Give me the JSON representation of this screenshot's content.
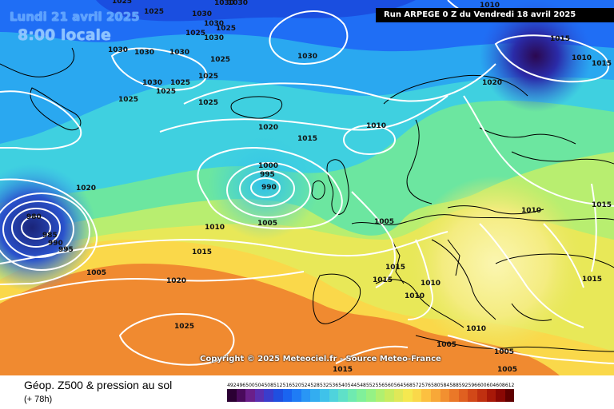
{
  "header": {
    "date_text": "Lundi 21 avril 2025",
    "time_text": "8:00 locale",
    "run_text": "Run ARPEGE 0 Z du Vendredi 18 avril 2025"
  },
  "copyright": "Copyright © 2025 Meteociel.fr - Source Meteo-France",
  "footer": {
    "title": "Géop. Z500 & pression au sol",
    "subtitle": "(+ 78h)"
  },
  "legend": {
    "labels": [
      "492",
      "496",
      "500",
      "504",
      "508",
      "512",
      "516",
      "520",
      "524",
      "528",
      "532",
      "536",
      "540",
      "544",
      "548",
      "552",
      "556",
      "560",
      "564",
      "568",
      "572",
      "576",
      "580",
      "584",
      "588",
      "592",
      "596",
      "600",
      "604",
      "608",
      "612"
    ],
    "colors": [
      "#2b0033",
      "#4a0a5c",
      "#6a1f8a",
      "#5a2fb0",
      "#3a3dcc",
      "#1f4fe0",
      "#1a64f0",
      "#1f7cf5",
      "#2996f5",
      "#33adf0",
      "#3fc2ea",
      "#4fd3dc",
      "#5fe0c8",
      "#6feab0",
      "#80f09a",
      "#95f285",
      "#b0f070",
      "#c8ec60",
      "#e0e858",
      "#f5e850",
      "#fad84a",
      "#fcc040",
      "#f8a838",
      "#f29030",
      "#ea7828",
      "#e06020",
      "#d24818",
      "#c03010",
      "#a81808",
      "#8a0804",
      "#600000"
    ]
  },
  "pressure_labels": [
    "1025",
    "1025",
    "1030",
    "1030",
    "1030",
    "1030",
    "1025",
    "1030",
    "1025",
    "1030",
    "1030",
    "1030",
    "1030",
    "1025",
    "1030",
    "1025",
    "1025",
    "1025",
    "1025",
    "1025",
    "1020",
    "1015",
    "1010",
    "1000",
    "995",
    "990",
    "980",
    "985",
    "990",
    "995",
    "1005",
    "1010",
    "1015",
    "1005",
    "1020",
    "1025",
    "1015",
    "1015",
    "1010",
    "1010",
    "1005",
    "1005",
    "1005",
    "1015",
    "1015",
    "1010",
    "1015",
    "1010",
    "1005",
    "1015",
    "1020",
    "1015",
    "1010",
    "1010",
    "1020"
  ],
  "map_colors": {
    "deep_low": "#1a2a8a",
    "cold_blue": "#2a5ae0",
    "cyan": "#38c8e8",
    "green": "#5ad88a",
    "yellow": "#f0e860",
    "pale_yellow": "#f8f4a0",
    "orange": "#f08a30"
  }
}
